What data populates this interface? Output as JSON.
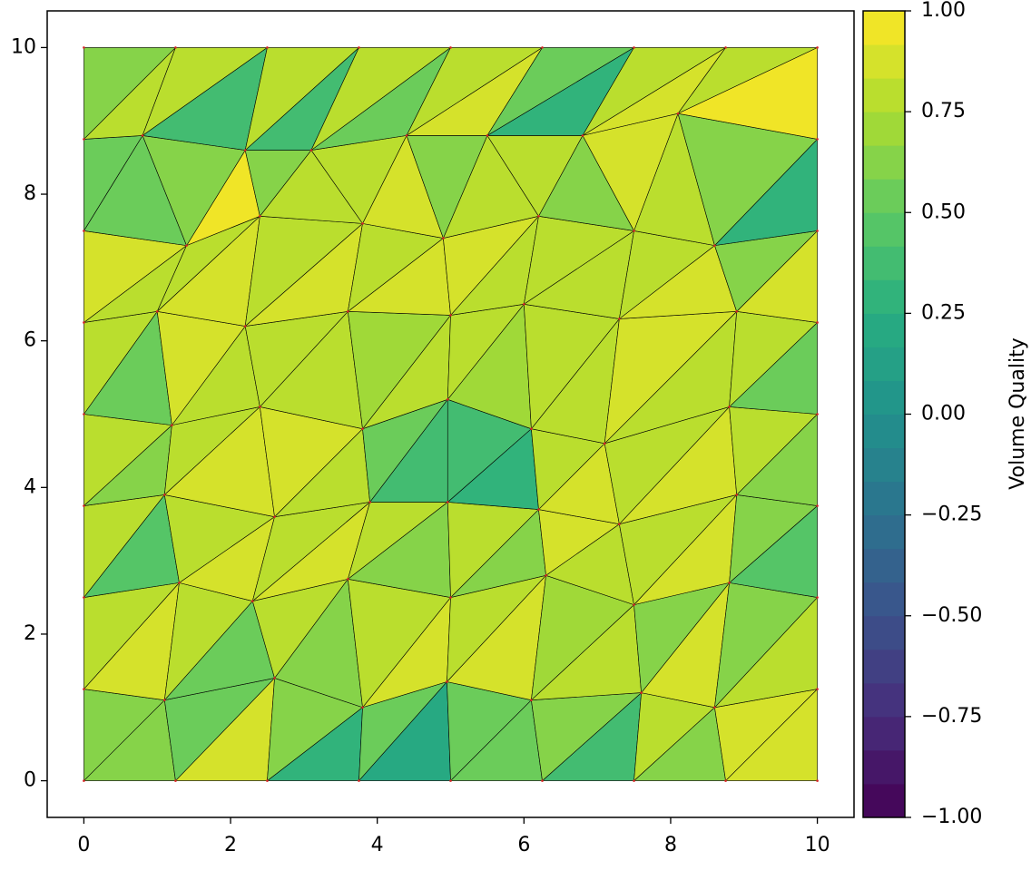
{
  "chart_data": {
    "type": "tripcolor",
    "colorbar_label": "Volume Quality",
    "colormap": "viridis",
    "edge_color": "#000000",
    "node_color": "#d62728",
    "xlim": [
      -0.5,
      10.5
    ],
    "ylim": [
      -0.5,
      10.5
    ],
    "xticks": [
      0,
      2,
      4,
      6,
      8,
      10
    ],
    "yticks": [
      0,
      2,
      4,
      6,
      8,
      10
    ],
    "clim": [
      -1,
      1
    ],
    "cticks": [
      {
        "value": -1,
        "label": "−1.00"
      },
      {
        "value": -0.75,
        "label": "−0.75"
      },
      {
        "value": -0.5,
        "label": "−0.50"
      },
      {
        "value": -0.25,
        "label": "−0.25"
      },
      {
        "value": 0,
        "label": "0.00"
      },
      {
        "value": 0.25,
        "label": "0.25"
      },
      {
        "value": 0.5,
        "label": "0.50"
      },
      {
        "value": 0.75,
        "label": "0.75"
      },
      {
        "value": 1,
        "label": "1.00"
      }
    ],
    "grid_shape": [
      9,
      9
    ],
    "nodes": {
      "x": [
        0,
        1.25,
        2.5,
        3.75,
        5,
        6.25,
        7.5,
        8.75,
        10,
        0,
        1.1,
        2.6,
        3.8,
        4.95,
        6.1,
        7.6,
        8.6,
        10,
        0,
        1.3,
        2.3,
        3.6,
        5.0,
        6.3,
        7.5,
        8.8,
        10,
        0,
        1.1,
        2.6,
        3.9,
        4.96,
        6.2,
        7.3,
        8.9,
        10,
        0,
        1.2,
        2.4,
        3.8,
        4.96,
        6.1,
        7.1,
        8.8,
        10,
        0,
        1.0,
        2.2,
        3.6,
        5.0,
        6.0,
        7.3,
        8.9,
        10,
        0,
        1.4,
        2.4,
        3.8,
        4.9,
        6.2,
        7.5,
        8.6,
        10,
        0,
        0.8,
        2.2,
        3.1,
        4.4,
        5.5,
        6.8,
        8.1,
        10,
        0,
        1.25,
        2.5,
        3.75,
        5,
        6.25,
        7.5,
        8.75,
        10
      ],
      "y": [
        0,
        0,
        0,
        0,
        0,
        0,
        0,
        0,
        0,
        1.25,
        1.1,
        1.4,
        1.0,
        1.35,
        1.1,
        1.2,
        1.0,
        1.25,
        2.5,
        2.7,
        2.45,
        2.75,
        2.5,
        2.8,
        2.4,
        2.7,
        2.5,
        3.75,
        3.9,
        3.6,
        3.8,
        3.8,
        3.7,
        3.5,
        3.9,
        3.75,
        5,
        4.85,
        5.1,
        4.8,
        5.2,
        4.8,
        4.6,
        5.1,
        5,
        6.25,
        6.4,
        6.2,
        6.4,
        6.35,
        6.5,
        6.3,
        6.4,
        6.25,
        7.5,
        7.3,
        7.7,
        7.6,
        7.4,
        7.7,
        7.5,
        7.3,
        7.5,
        8.75,
        8.8,
        8.6,
        8.6,
        8.8,
        8.8,
        8.8,
        9.1,
        8.75,
        10,
        10,
        10,
        10,
        10,
        10,
        10,
        10,
        10
      ]
    },
    "values": [
      0.65,
      0.6,
      0.9,
      0.55,
      0.3,
      0.6,
      0.2,
      0.55,
      0.5,
      0.55,
      0.35,
      0.6,
      0.6,
      0.78,
      0.9,
      0.85,
      0.9,
      0.8,
      0.55,
      0.78,
      0.6,
      0.75,
      0.85,
      0.78,
      0.85,
      0.8,
      0.8,
      0.7,
      0.9,
      0.65,
      0.75,
      0.6,
      0.45,
      0.78,
      0.9,
      0.78,
      0.9,
      0.8,
      0.6,
      0.78,
      0.6,
      0.75,
      0.8,
      0.85,
      0.9,
      0.78,
      0.45,
      0.6,
      0.65,
      0.78,
      0.85,
      0.78,
      0.78,
      0.85,
      0.35,
      0.55,
      0.3,
      0.4,
      0.85,
      0.78,
      0.9,
      0.78,
      0.65,
      0.78,
      0.5,
      0.78,
      0.78,
      0.85,
      0.8,
      0.78,
      0.75,
      0.7,
      0.7,
      0.78,
      0.78,
      0.78,
      0.78,
      0.85,
      0.5,
      0.78,
      0.78,
      0.9,
      0.9,
      0.78,
      0.9,
      0.78,
      0.9,
      0.78,
      0.78,
      0.85,
      0.78,
      0.78,
      0.9,
      0.78,
      0.9,
      0.65,
      0.5,
      0.55,
      0.95,
      0.6,
      0.78,
      0.65,
      0.9,
      0.78,
      0.78,
      0.65,
      0.65,
      0.78,
      0.78,
      0.85,
      0.3,
      0.6,
      0.8,
      0.65,
      0.35,
      0.78,
      0.35,
      0.75,
      0.55,
      0.78,
      0.9,
      0.78,
      0.3,
      0.55,
      0.85,
      0.78,
      0.95,
      0.75
    ]
  }
}
